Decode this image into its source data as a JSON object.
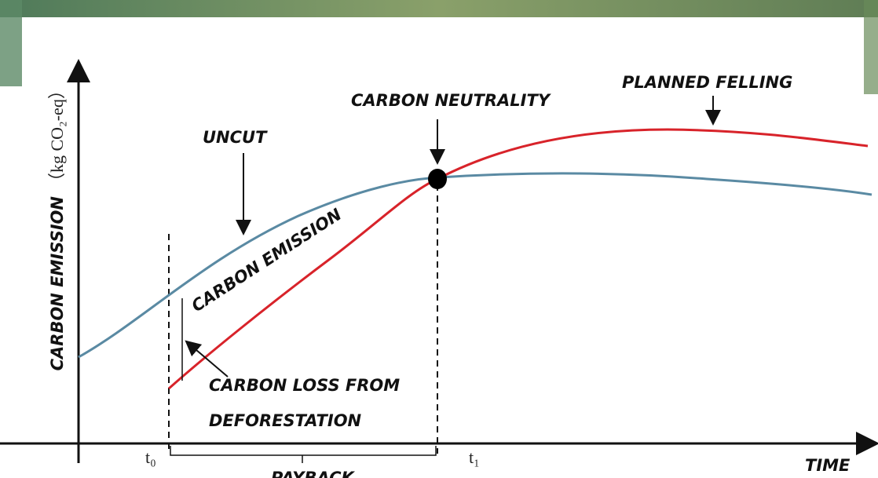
{
  "axes": {
    "y_label": "CARBON EMISSION",
    "y_unit": "（kg CO₂-eq）",
    "x_label": "TIME"
  },
  "annotations": {
    "uncut": "UNCUT",
    "carbon_neutrality": "CARBON NEUTRALITY",
    "planned_felling": "PLANNED FELLING",
    "carbon_emission": "CARBON EMISSION",
    "carbon_loss_line1": "CARBON LOSS FROM",
    "carbon_loss_line2": "DEFORESTATION",
    "payback": "PAYBACK"
  },
  "time_marks": {
    "t0": "t₀",
    "t1": "t₁"
  }
}
